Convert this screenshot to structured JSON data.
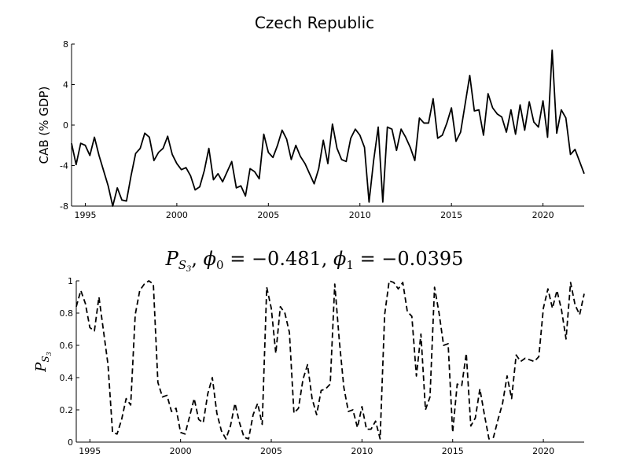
{
  "chart_data": [
    {
      "type": "line",
      "title": "Czech Republic",
      "ylabel": "CAB (% GDP)",
      "xlabel": "",
      "xlim": [
        1994.25,
        2022.25
      ],
      "ylim": [
        -8,
        8
      ],
      "xticks": [
        "1995",
        "2000",
        "2005",
        "2010",
        "2015",
        "2020"
      ],
      "yticks": [
        "-8",
        "-4",
        "0",
        "4",
        "8"
      ],
      "grid": false,
      "line_style": "solid",
      "color": "#000000",
      "series": [
        {
          "x": [
            1994.25,
            1994.5,
            1994.75,
            1995,
            1995.25,
            1995.5,
            1995.75,
            1996,
            1996.25,
            1996.5,
            1996.75,
            1997,
            1997.25,
            1997.5,
            1997.75,
            1998,
            1998.25,
            1998.5,
            1998.75,
            1999,
            1999.25,
            1999.5,
            1999.75,
            2000,
            2000.25,
            2000.5,
            2000.75,
            2001,
            2001.25,
            2001.5,
            2001.75,
            2002,
            2002.25,
            2002.5,
            2002.75,
            2003,
            2003.25,
            2003.5,
            2003.75,
            2004,
            2004.25,
            2004.5,
            2004.75,
            2005,
            2005.25,
            2005.5,
            2005.75,
            2006,
            2006.25,
            2006.5,
            2006.75,
            2007,
            2007.25,
            2007.5,
            2007.75,
            2008,
            2008.25,
            2008.5,
            2008.75,
            2009,
            2009.25,
            2009.5,
            2009.75,
            2010,
            2010.25,
            2010.5,
            2010.75,
            2011,
            2011.25,
            2011.5,
            2011.75,
            2012,
            2012.25,
            2012.5,
            2012.75,
            2013,
            2013.25,
            2013.5,
            2013.75,
            2014,
            2014.25,
            2014.5,
            2014.75,
            2015,
            2015.25,
            2015.5,
            2015.75,
            2016,
            2016.25,
            2016.5,
            2016.75,
            2017,
            2017.25,
            2017.5,
            2017.75,
            2018,
            2018.25,
            2018.5,
            2018.75,
            2019,
            2019.25,
            2019.5,
            2019.75,
            2020,
            2020.25,
            2020.5,
            2020.75,
            2021,
            2021.25,
            2021.5,
            2021.75,
            2022,
            2022.25
          ],
          "y": [
            -1.8,
            -3.9,
            -1.8,
            -2.0,
            -3.0,
            -1.2,
            -3.0,
            -4.5,
            -6.0,
            -8.0,
            -6.2,
            -7.4,
            -7.5,
            -5.0,
            -2.8,
            -2.3,
            -0.8,
            -1.2,
            -3.5,
            -2.7,
            -2.3,
            -1.1,
            -2.9,
            -3.8,
            -4.4,
            -4.2,
            -5.0,
            -6.4,
            -6.1,
            -4.5,
            -2.3,
            -5.4,
            -4.8,
            -5.6,
            -4.6,
            -3.6,
            -6.2,
            -6.0,
            -7.0,
            -4.3,
            -4.6,
            -5.3,
            -0.9,
            -2.7,
            -3.2,
            -2.0,
            -0.5,
            -1.4,
            -3.4,
            -2.0,
            -3.1,
            -3.8,
            -4.8,
            -5.8,
            -4.3,
            -1.5,
            -3.8,
            0.1,
            -2.3,
            -3.4,
            -3.6,
            -1.3,
            -0.4,
            -1.0,
            -2.2,
            -7.6,
            -3.5,
            -0.2,
            -7.6,
            -0.2,
            -0.4,
            -2.5,
            -0.4,
            -1.2,
            -2.2,
            -3.5,
            0.7,
            0.2,
            0.2,
            2.6,
            -1.3,
            -1.0,
            0.2,
            1.7,
            -1.6,
            -0.7,
            2.1,
            4.9,
            1.4,
            1.5,
            -1.0,
            3.1,
            1.7,
            1.1,
            0.8,
            -0.7,
            1.5,
            -0.9,
            2.0,
            -0.5,
            2.3,
            0.3,
            -0.2,
            2.4,
            -1.2,
            7.4,
            -0.8,
            1.5,
            0.7,
            -2.9,
            -2.4,
            -3.6,
            -4.8
          ]
        }
      ]
    },
    {
      "type": "line",
      "title": "P_{S_3}, φ0 = −0.481, φ1 = −0.0395",
      "title_parts": {
        "P": "P",
        "S": "S",
        "sub3": "3",
        "comma1": ", ",
        "phi0": "ϕ",
        "sub0": "0",
        "eq0": " = −0.481, ",
        "phi1": "ϕ",
        "sub1": "1",
        "eq1": " = −0.0395"
      },
      "ylabel": "P_{S_3}",
      "ylabel_parts": {
        "P": "P",
        "S": "S",
        "sub3": "3"
      },
      "xlabel": "",
      "xlim": [
        1994.25,
        2022.25
      ],
      "ylim": [
        0,
        1
      ],
      "xticks": [
        "1995",
        "2000",
        "2005",
        "2010",
        "2015",
        "2020"
      ],
      "yticks": [
        "0",
        "0.2",
        "0.4",
        "0.6",
        "0.8",
        "1"
      ],
      "grid": false,
      "line_style": "dashed",
      "color": "#000000",
      "series": [
        {
          "x": [
            1994.25,
            1994.5,
            1994.75,
            1995,
            1995.25,
            1995.5,
            1995.75,
            1996,
            1996.25,
            1996.5,
            1996.75,
            1997,
            1997.25,
            1997.5,
            1997.75,
            1998,
            1998.25,
            1998.5,
            1998.75,
            1999,
            1999.25,
            1999.5,
            1999.75,
            2000,
            2000.25,
            2000.5,
            2000.75,
            2001,
            2001.25,
            2001.5,
            2001.75,
            2002,
            2002.25,
            2002.5,
            2002.75,
            2003,
            2003.25,
            2003.5,
            2003.75,
            2004,
            2004.25,
            2004.5,
            2004.75,
            2005,
            2005.25,
            2005.5,
            2005.75,
            2006,
            2006.25,
            2006.5,
            2006.75,
            2007,
            2007.25,
            2007.5,
            2007.75,
            2008,
            2008.25,
            2008.5,
            2008.75,
            2009,
            2009.25,
            2009.5,
            2009.75,
            2010,
            2010.25,
            2010.5,
            2010.75,
            2011,
            2011.25,
            2011.5,
            2011.75,
            2012,
            2012.25,
            2012.5,
            2012.75,
            2013,
            2013.25,
            2013.5,
            2013.75,
            2014,
            2014.25,
            2014.5,
            2014.75,
            2015,
            2015.25,
            2015.5,
            2015.75,
            2016,
            2016.25,
            2016.5,
            2016.75,
            2017,
            2017.25,
            2017.5,
            2017.75,
            2018,
            2018.25,
            2018.5,
            2018.75,
            2019,
            2019.25,
            2019.5,
            2019.75,
            2020,
            2020.25,
            2020.5,
            2020.75,
            2021,
            2021.25,
            2021.5,
            2021.75,
            2022,
            2022.25
          ],
          "y": [
            0.84,
            0.94,
            0.86,
            0.71,
            0.69,
            0.9,
            0.69,
            0.48,
            0.06,
            0.05,
            0.14,
            0.27,
            0.23,
            0.79,
            0.94,
            0.98,
            1.0,
            0.98,
            0.37,
            0.28,
            0.29,
            0.19,
            0.21,
            0.06,
            0.05,
            0.16,
            0.27,
            0.14,
            0.12,
            0.3,
            0.4,
            0.18,
            0.07,
            0.02,
            0.1,
            0.24,
            0.12,
            0.03,
            0.02,
            0.17,
            0.24,
            0.11,
            0.96,
            0.83,
            0.55,
            0.84,
            0.8,
            0.68,
            0.18,
            0.21,
            0.39,
            0.48,
            0.27,
            0.17,
            0.32,
            0.33,
            0.36,
            0.98,
            0.63,
            0.34,
            0.19,
            0.2,
            0.09,
            0.22,
            0.08,
            0.08,
            0.13,
            0.02,
            0.79,
            1.0,
            0.99,
            0.95,
            0.99,
            0.81,
            0.78,
            0.41,
            0.67,
            0.2,
            0.28,
            0.96,
            0.8,
            0.6,
            0.61,
            0.06,
            0.36,
            0.35,
            0.55,
            0.1,
            0.15,
            0.33,
            0.17,
            0.02,
            0.03,
            0.14,
            0.24,
            0.41,
            0.27,
            0.54,
            0.5,
            0.52,
            0.51,
            0.5,
            0.53,
            0.83,
            0.95,
            0.83,
            0.94,
            0.82,
            0.64,
            0.99,
            0.85,
            0.79,
            0.92
          ]
        }
      ]
    }
  ]
}
